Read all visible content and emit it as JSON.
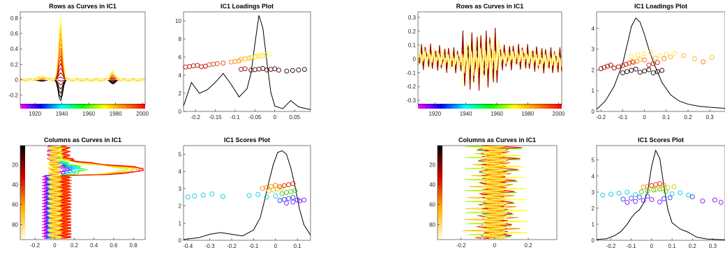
{
  "chart_data": [
    {
      "type": "line",
      "title": "Rows as Curves in IC1",
      "xlim": [
        1909,
        2002
      ],
      "ylim": [
        -0.32,
        0.88
      ],
      "xticks": [
        1920,
        1940,
        1960,
        1980,
        2000
      ],
      "yticks": [
        -0.2,
        0,
        0.2,
        0.4,
        0.6,
        0.8
      ],
      "colorbar": "hsv",
      "grid": false,
      "series_summary": "family of curves; main peak near 1939",
      "peak": {
        "x": 1939,
        "y": 0.84
      },
      "trough": {
        "x": 1939,
        "y": -0.26
      }
    },
    {
      "type": "scatter",
      "title": "IC1 Loadings Plot",
      "xlim": [
        -0.23,
        0.09
      ],
      "ylim": [
        0,
        11
      ],
      "xticks": [
        -0.2,
        -0.15,
        -0.1,
        -0.05,
        0,
        0.05
      ],
      "xtick_labels": [
        "-0.2",
        "-0.15",
        "-0.1",
        "-0.05",
        "0",
        "0.05"
      ],
      "yticks": [
        0,
        2,
        4,
        6,
        8,
        10
      ],
      "density": {
        "x": [
          -0.23,
          -0.21,
          -0.19,
          -0.17,
          -0.15,
          -0.13,
          -0.11,
          -0.09,
          -0.07,
          -0.06,
          -0.05,
          -0.04,
          -0.03,
          -0.02,
          -0.01,
          0,
          0.02,
          0.04,
          0.06,
          0.09
        ],
        "y": [
          0.6,
          3.2,
          2.0,
          2.4,
          3.2,
          4.2,
          3.0,
          1.6,
          2.5,
          4.2,
          7.5,
          10.6,
          9.2,
          5.5,
          2.1,
          0.6,
          0.3,
          1.2,
          0.5,
          0.2
        ]
      },
      "points": {
        "colors": [
          "#1f0000",
          "#a80000",
          "#e61a00",
          "#ff6a00",
          "#ffb000",
          "#ffe060"
        ],
        "bands": [
          {
            "color": "#c00000",
            "y": 5.0,
            "x": [
              -0.225,
              -0.215,
              -0.205,
              -0.195,
              -0.185,
              -0.175
            ]
          },
          {
            "color": "#d84000",
            "y": 5.25,
            "x": [
              -0.165,
              -0.155,
              -0.145,
              -0.13
            ]
          },
          {
            "color": "#ff8000",
            "y": 5.55,
            "x": [
              -0.11,
              -0.1,
              -0.09
            ]
          },
          {
            "color": "#ffb000",
            "y": 5.85,
            "x": [
              -0.085,
              -0.075,
              -0.065
            ]
          },
          {
            "color": "#ffd400",
            "y": 6.05,
            "x": [
              -0.06,
              -0.05,
              -0.04,
              -0.03
            ]
          },
          {
            "color": "#fff060",
            "y": 6.25,
            "x": [
              -0.045,
              -0.035,
              -0.025,
              -0.015
            ]
          },
          {
            "color": "#4a0000",
            "y": 4.65,
            "x": [
              -0.06,
              -0.05,
              -0.04,
              -0.03,
              -0.02,
              -0.01,
              0.0,
              0.01
            ]
          },
          {
            "color": "#1a0000",
            "y": 4.55,
            "x": [
              0.03,
              0.045,
              0.06,
              0.075
            ]
          },
          {
            "color": "#900000",
            "y": 4.75,
            "x": [
              -0.085,
              -0.075
            ]
          }
        ]
      }
    },
    {
      "type": "line",
      "title": "Rows as Curves in IC1",
      "xlim": [
        1909,
        2002
      ],
      "ylim": [
        -0.33,
        0.34
      ],
      "xticks": [
        1920,
        1940,
        1960,
        1980,
        2000
      ],
      "yticks": [
        -0.3,
        -0.2,
        -0.1,
        0,
        0.1,
        0.2,
        0.3
      ],
      "colorbar": "hsv",
      "grid": false,
      "series_summary": "family of oscillating curves around zero, largest swings 1940-1960"
    },
    {
      "type": "scatter",
      "title": "IC1 Loadings Plot",
      "xlim": [
        -0.22,
        0.37
      ],
      "ylim": [
        0,
        4.8
      ],
      "xticks": [
        -0.2,
        -0.1,
        0,
        0.1,
        0.2,
        0.3
      ],
      "xtick_labels": [
        "-0.2",
        "-0.1",
        "0",
        "0.1",
        "0.2",
        "0.3"
      ],
      "yticks": [
        0,
        1,
        2,
        3,
        4
      ],
      "density": {
        "x": [
          -0.22,
          -0.18,
          -0.14,
          -0.1,
          -0.08,
          -0.06,
          -0.04,
          -0.02,
          0,
          0.02,
          0.04,
          0.08,
          0.12,
          0.16,
          0.2,
          0.25,
          0.3,
          0.37
        ],
        "y": [
          0.1,
          0.5,
          1.2,
          2.3,
          3.2,
          4.1,
          4.5,
          4.3,
          3.7,
          3.0,
          2.4,
          1.4,
          0.8,
          0.5,
          0.35,
          0.25,
          0.2,
          0.15
        ]
      },
      "points": {
        "colors": [
          "#1f0000",
          "#a80000",
          "#e61a00",
          "#ff6a00",
          "#ffb000",
          "#ffe060"
        ],
        "bands": [
          {
            "color": "#a00000",
            "y": 2.15,
            "x": [
              -0.2,
              -0.185,
              -0.17,
              -0.155,
              -0.14,
              -0.12
            ]
          },
          {
            "color": "#d02000",
            "y": 2.3,
            "x": [
              -0.1,
              -0.085,
              -0.07,
              -0.055,
              0.02,
              0.04,
              0.06
            ]
          },
          {
            "color": "#ff7000",
            "y": 2.45,
            "x": [
              -0.05,
              -0.035,
              0.0,
              0.09,
              0.27
            ]
          },
          {
            "color": "#ffb000",
            "y": 2.6,
            "x": [
              -0.02,
              0.05,
              0.12,
              0.18,
              0.23,
              0.31
            ]
          },
          {
            "color": "#ffe040",
            "y": 2.75,
            "x": [
              -0.06,
              -0.03,
              0.0,
              0.03,
              0.07,
              0.1,
              0.14
            ]
          },
          {
            "color": "#1a0000",
            "y": 1.95,
            "x": [
              -0.1,
              -0.08,
              -0.06,
              -0.04,
              -0.02,
              0.0,
              0.02,
              0.04,
              0.06,
              0.08
            ]
          }
        ]
      }
    },
    {
      "type": "line",
      "title": "Columns as Curves in IC1",
      "xlim": [
        -0.35,
        0.92
      ],
      "ylim": [
        1,
        95
      ],
      "y_reversed": true,
      "xticks": [
        -0.2,
        0,
        0.2,
        0.4,
        0.6,
        0.8
      ],
      "yticks": [
        20,
        40,
        60,
        80
      ],
      "colorbar": "hot",
      "grid": false,
      "peak": {
        "x": 0.85,
        "y": 25
      }
    },
    {
      "type": "scatter",
      "title": "IC1 Scores Plot",
      "xlim": [
        -0.42,
        0.16
      ],
      "ylim": [
        0,
        5.5
      ],
      "xticks": [
        -0.4,
        -0.3,
        -0.2,
        -0.1,
        0,
        0.1
      ],
      "xtick_labels": [
        "-0.4",
        "-0.3",
        "-0.2",
        "-0.1",
        "0",
        "0.1"
      ],
      "yticks": [
        0,
        1,
        2,
        3,
        4,
        5
      ],
      "density": {
        "x": [
          -0.42,
          -0.35,
          -0.3,
          -0.25,
          -0.2,
          -0.15,
          -0.1,
          -0.07,
          -0.05,
          -0.03,
          -0.01,
          0.01,
          0.03,
          0.05,
          0.07,
          0.09,
          0.11,
          0.13,
          0.16
        ],
        "y": [
          0.05,
          0.15,
          0.35,
          0.45,
          0.35,
          0.25,
          0.6,
          1.3,
          2.3,
          3.4,
          4.4,
          5.1,
          5.2,
          5.0,
          4.2,
          3.1,
          1.8,
          0.9,
          0.3
        ]
      },
      "points": {
        "colors": [
          "#d00000",
          "#ff8000",
          "#e0d000",
          "#40e000",
          "#00d0d0",
          "#0060ff",
          "#7000e0",
          "#c000ff"
        ],
        "bands": [
          {
            "color": "#e02000",
            "y": 3.2,
            "x": [
              0.02,
              0.04,
              0.06,
              0.08
            ]
          },
          {
            "color": "#ff8000",
            "y": 3.1,
            "x": [
              -0.06,
              -0.04,
              -0.02,
              0.0
            ]
          },
          {
            "color": "#e0c000",
            "y": 2.95,
            "x": [
              -0.03,
              -0.01,
              0.01,
              0.03
            ]
          },
          {
            "color": "#40d000",
            "y": 2.8,
            "x": [
              0.03,
              0.05,
              0.07,
              0.09
            ]
          },
          {
            "color": "#00c8e0",
            "y": 2.6,
            "x": [
              -0.4,
              -0.37,
              -0.33,
              -0.29,
              -0.24,
              -0.12,
              -0.08,
              -0.04,
              0.0
            ]
          },
          {
            "color": "#2040ff",
            "y": 2.4,
            "x": [
              0.02,
              0.04,
              0.06,
              0.08,
              0.1
            ]
          },
          {
            "color": "#9000ff",
            "y": 2.25,
            "x": [
              0.05,
              0.08,
              0.11,
              0.13
            ]
          }
        ]
      }
    },
    {
      "type": "line",
      "title": "Columns as Curves in IC1",
      "xlim": [
        -0.34,
        0.37
      ],
      "ylim": [
        1,
        95
      ],
      "y_reversed": true,
      "xticks": [
        -0.2,
        0,
        0.2
      ],
      "yticks": [
        20,
        40,
        60,
        80
      ],
      "colorbar": "hot",
      "grid": false
    },
    {
      "type": "scatter",
      "title": "IC1 Scores Plot",
      "xlim": [
        -0.27,
        0.36
      ],
      "ylim": [
        0,
        5.9
      ],
      "xticks": [
        -0.2,
        -0.1,
        0,
        0.1,
        0.2,
        0.3
      ],
      "xtick_labels": [
        "-0.2",
        "-0.1",
        "0",
        "0.1",
        "0.2",
        "0.3"
      ],
      "yticks": [
        0,
        1,
        2,
        3,
        4,
        5
      ],
      "density": {
        "x": [
          -0.27,
          -0.22,
          -0.18,
          -0.15,
          -0.12,
          -0.1,
          -0.08,
          -0.06,
          -0.04,
          -0.02,
          0,
          0.02,
          0.04,
          0.06,
          0.08,
          0.1,
          0.14,
          0.18,
          0.22,
          0.27,
          0.32,
          0.36
        ],
        "y": [
          0.05,
          0.1,
          0.3,
          0.55,
          1.0,
          1.4,
          1.7,
          1.9,
          2.3,
          3.0,
          4.6,
          5.6,
          5.1,
          3.4,
          1.9,
          1.1,
          0.7,
          0.5,
          0.2,
          0.08,
          0.05,
          0.03
        ]
      },
      "points": {
        "colors": [
          "#d00000",
          "#ff8000",
          "#e0d000",
          "#40e000",
          "#00d0d0",
          "#0060ff",
          "#7000e0",
          "#c000ff"
        ],
        "bands": [
          {
            "color": "#e02000",
            "y": 3.5,
            "x": [
              0.0,
              0.02,
              0.04
            ]
          },
          {
            "color": "#ff8000",
            "y": 3.4,
            "x": [
              -0.04,
              -0.02,
              0.06
            ]
          },
          {
            "color": "#e0c000",
            "y": 3.25,
            "x": [
              0.02,
              0.05,
              0.08,
              0.11
            ]
          },
          {
            "color": "#40d000",
            "y": 3.1,
            "x": [
              -0.05,
              -0.02,
              0.01,
              0.04,
              0.07
            ]
          },
          {
            "color": "#00c8e0",
            "y": 2.9,
            "x": [
              -0.24,
              -0.2,
              -0.16,
              -0.12,
              -0.08,
              0.1,
              0.14,
              0.18
            ]
          },
          {
            "color": "#2040ff",
            "y": 2.65,
            "x": [
              -0.14,
              -0.1,
              -0.06,
              -0.02,
              0.06,
              0.09,
              0.2
            ]
          },
          {
            "color": "#9000ff",
            "y": 2.45,
            "x": [
              -0.12,
              -0.08,
              -0.04,
              0.0,
              0.04,
              0.25,
              0.31,
              0.34
            ]
          }
        ]
      }
    }
  ]
}
